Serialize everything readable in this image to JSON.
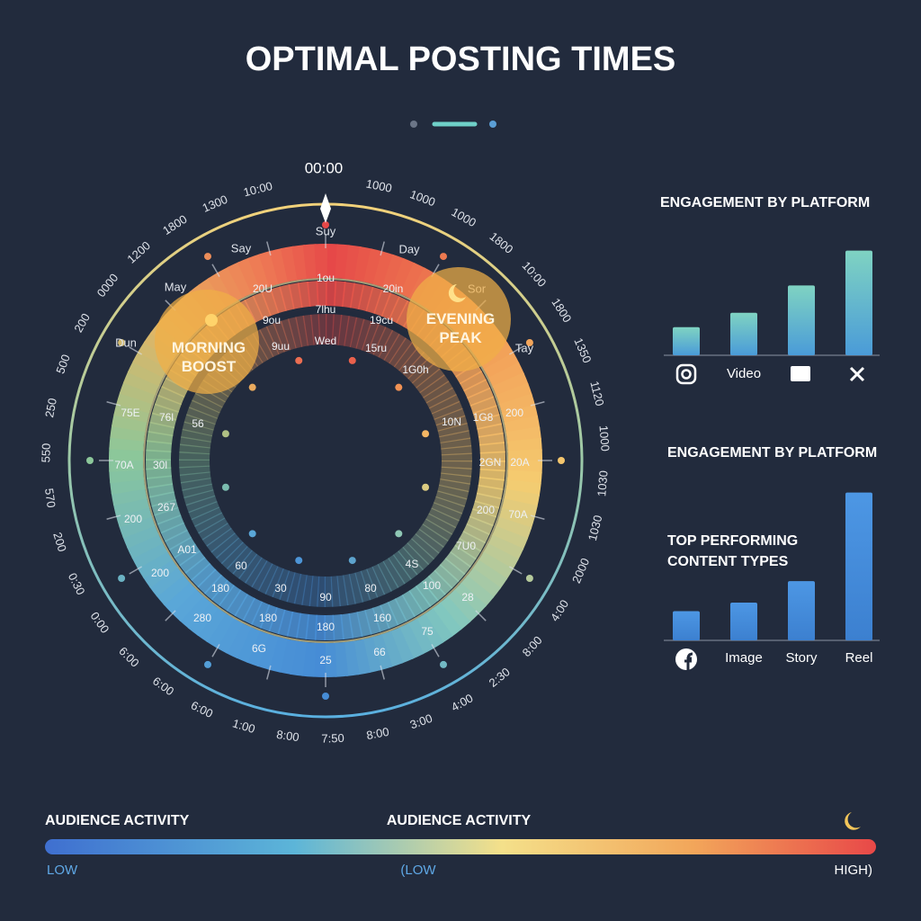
{
  "title": "OPTIMAL POSTING TIMES",
  "dial": {
    "top_label": "00:00",
    "outer_labels": [
      "1000",
      "1000",
      "1000",
      "1800",
      "10:00",
      "1800",
      "1350",
      "1120",
      "1000",
      "1030",
      "1030",
      "2000",
      "4:00",
      "8:00",
      "2:30",
      "4:00",
      "3:00",
      "8:00",
      "7:50",
      "8:00",
      "1:00",
      "6:00",
      "6:00",
      "6:00",
      "0:00",
      "0:30",
      "200",
      "570",
      "550",
      "250",
      "500",
      "200",
      "0000",
      "1200",
      "1800",
      "1300",
      "10:00"
    ],
    "day_labels": [
      "Suy",
      "Say",
      "Day",
      "May",
      "Sor",
      "Dun",
      "Tay"
    ],
    "ring_labels": [
      "20U",
      "1ou",
      "20in",
      "9ou",
      "7lhu",
      "19cu",
      "9uu",
      "Wed",
      "15ru",
      "1G0h",
      "75E",
      "76l",
      "56",
      "70A",
      "30l",
      "200",
      "267",
      "200",
      "A01",
      "280",
      "180",
      "6G",
      "180",
      "30",
      "60",
      "25",
      "180",
      "90",
      "66",
      "160",
      "80",
      "75",
      "100",
      "4S",
      "28",
      "7U0",
      "200",
      "70A",
      "2GN",
      "20A",
      "10N",
      "1G8",
      "200"
    ],
    "annotations": [
      "MORNING BOOST",
      "EVENING PEAK"
    ]
  },
  "chart_data": [
    {
      "type": "bar",
      "title": "ENGAGEMENT BY PLATFORM",
      "categories": [
        null,
        "Video",
        null,
        null
      ],
      "values": [
        33,
        50,
        82,
        123
      ],
      "ylim": [
        0,
        130
      ]
    },
    {
      "type": "bar",
      "title": "ENGAGEMENT BY PLATFORM",
      "subtitle": "TOP PERFORMING CONTENT TYPES",
      "categories": [
        null,
        "Image",
        "Story",
        "Reel"
      ],
      "values": [
        34,
        44,
        69,
        172
      ],
      "ylim": [
        0,
        180
      ]
    }
  ],
  "legend": {
    "left_title": "AUDIENCE ACTIVITY",
    "center_title": "AUDIENCE ACTIVITY",
    "low": "LOW",
    "mid": "(LOW",
    "high": "HIGH)"
  }
}
